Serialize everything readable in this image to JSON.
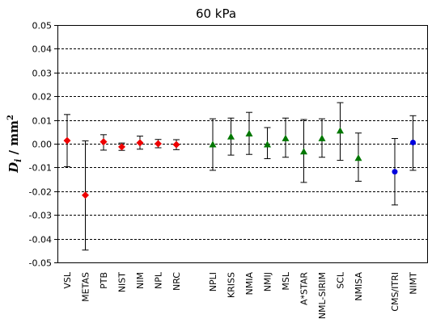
{
  "chart_data": {
    "type": "scatter",
    "title": "60 kPa",
    "ylabel": {
      "symbol": "D",
      "subscript": "i",
      "unit": " / mm",
      "superscript": "2"
    },
    "xlabel": "",
    "ylim": [
      -0.05,
      0.05
    ],
    "yticks": [
      "-0.05",
      "-0.04",
      "-0.03",
      "-0.02",
      "-0.01",
      "0.00",
      "0.01",
      "0.02",
      "0.03",
      "0.04",
      "0.05"
    ],
    "grid": "horizontal dashed",
    "colors": {
      "red": "#ee0000",
      "green": "#007700",
      "blue": "#0000dd"
    },
    "points": [
      {
        "label": "VSL",
        "slot": 0,
        "y": 0.0013,
        "err_low": -0.0097,
        "err_high": 0.0123,
        "color": "red",
        "marker": "diamond"
      },
      {
        "label": "METAS",
        "slot": 1,
        "y": -0.0217,
        "err_low": -0.0448,
        "err_high": 0.0012,
        "color": "red",
        "marker": "diamond"
      },
      {
        "label": "PTB",
        "slot": 2,
        "y": 0.0008,
        "err_low": -0.0027,
        "err_high": 0.0038,
        "color": "red",
        "marker": "diamond"
      },
      {
        "label": "NIST",
        "slot": 3,
        "y": -0.0013,
        "err_low": -0.0028,
        "err_high": 0.0003,
        "color": "red",
        "marker": "diamond"
      },
      {
        "label": "NIM",
        "slot": 4,
        "y": 0.0004,
        "err_low": -0.0023,
        "err_high": 0.0032,
        "color": "red",
        "marker": "diamond"
      },
      {
        "label": "NPL",
        "slot": 5,
        "y": 0.0,
        "err_low": -0.0017,
        "err_high": 0.0018,
        "color": "red",
        "marker": "diamond"
      },
      {
        "label": "NRC",
        "slot": 6,
        "y": -0.0004,
        "err_low": -0.0025,
        "err_high": 0.0017,
        "color": "red",
        "marker": "diamond"
      },
      {
        "label": "NPLI",
        "slot": 8,
        "y": -0.0003,
        "err_low": -0.0112,
        "err_high": 0.0105,
        "color": "green",
        "marker": "triangle"
      },
      {
        "label": "KRISS",
        "slot": 9,
        "y": 0.003,
        "err_low": -0.0048,
        "err_high": 0.0108,
        "color": "green",
        "marker": "triangle"
      },
      {
        "label": "NMIA",
        "slot": 10,
        "y": 0.0043,
        "err_low": -0.0045,
        "err_high": 0.0132,
        "color": "green",
        "marker": "triangle"
      },
      {
        "label": "NMIJ",
        "slot": 11,
        "y": -0.0003,
        "err_low": -0.0063,
        "err_high": 0.0068,
        "color": "green",
        "marker": "triangle"
      },
      {
        "label": "MSL",
        "slot": 12,
        "y": 0.0023,
        "err_low": -0.0057,
        "err_high": 0.0108,
        "color": "green",
        "marker": "triangle"
      },
      {
        "label": "A*STAR",
        "slot": 13,
        "y": -0.0033,
        "err_low": -0.0163,
        "err_high": 0.0102,
        "color": "green",
        "marker": "triangle"
      },
      {
        "label": "NML-SIRIM",
        "slot": 14,
        "y": 0.0023,
        "err_low": -0.0057,
        "err_high": 0.0105,
        "color": "green",
        "marker": "triangle"
      },
      {
        "label": "SCL",
        "slot": 15,
        "y": 0.0055,
        "err_low": -0.007,
        "err_high": 0.0173,
        "color": "green",
        "marker": "triangle"
      },
      {
        "label": "NMISA",
        "slot": 16,
        "y": -0.006,
        "err_low": -0.0158,
        "err_high": 0.0045,
        "color": "green",
        "marker": "triangle"
      },
      {
        "label": "CMS/ITRI",
        "slot": 18,
        "y": -0.0118,
        "err_low": -0.0258,
        "err_high": 0.0022,
        "color": "blue",
        "marker": "circle"
      },
      {
        "label": "NIMT",
        "slot": 19,
        "y": 0.0005,
        "err_low": -0.0112,
        "err_high": 0.0118,
        "color": "blue",
        "marker": "circle"
      }
    ]
  }
}
